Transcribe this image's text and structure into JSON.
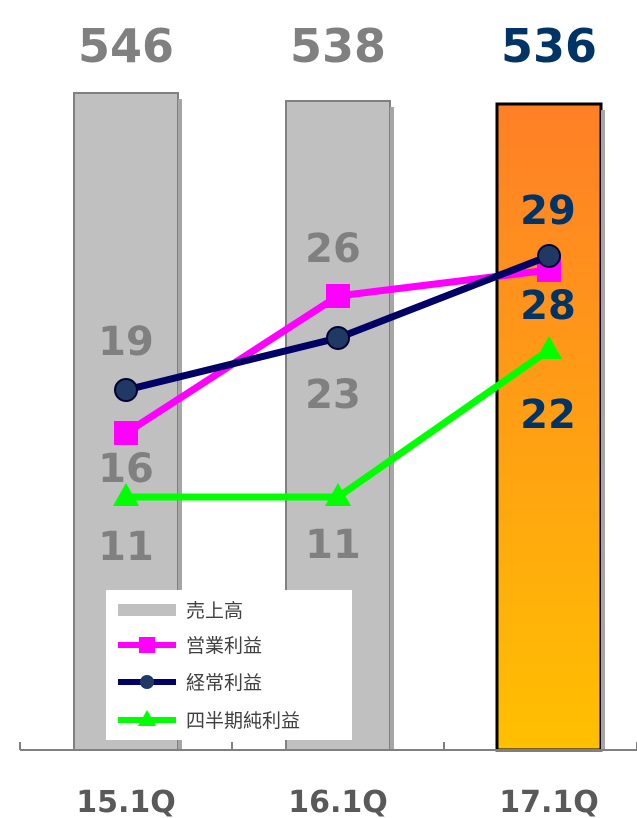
{
  "chart_data": {
    "type": "bar",
    "categories": [
      "15.1Q",
      "16.1Q",
      "17.1Q"
    ],
    "series": [
      {
        "name": "売上高",
        "kind": "bar",
        "values": [
          546,
          538,
          536
        ],
        "labels": [
          "546",
          "538",
          "536"
        ]
      },
      {
        "name": "営業利益",
        "kind": "line",
        "marker": "square",
        "color": "#ff00ff",
        "values": [
          16,
          26,
          28
        ],
        "labels": [
          "16",
          "26",
          "28"
        ]
      },
      {
        "name": "経常利益",
        "kind": "line",
        "marker": "circle",
        "color": "#000066",
        "values": [
          19,
          23,
          29
        ],
        "labels": [
          "19",
          "23",
          "29"
        ]
      },
      {
        "name": "四半期純利益",
        "kind": "line",
        "marker": "triangle",
        "color": "#00ff00",
        "values": [
          11,
          11,
          22
        ],
        "labels": [
          "11",
          "11",
          "22"
        ]
      }
    ],
    "legend_position": "bottom-left",
    "colors": {
      "bar_past": "#c0c0c0",
      "bar_current_top": "#ff7f27",
      "bar_current_bottom": "#ffc000",
      "label_past": "#808080",
      "label_current": "#003366"
    }
  }
}
